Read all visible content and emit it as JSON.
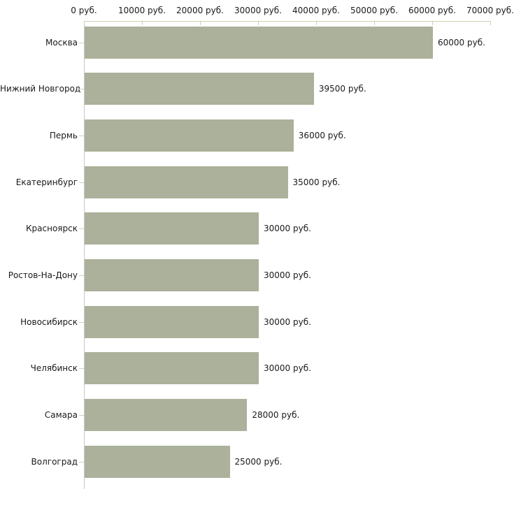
{
  "chart_data": {
    "type": "bar",
    "orientation": "horizontal",
    "title": "",
    "categories": [
      "Москва",
      "Нижний Новгород",
      "Пермь",
      "Екатеринбург",
      "Красноярск",
      "Ростов-На-Дону",
      "Новосибирск",
      "Челябинск",
      "Самара",
      "Волгоград"
    ],
    "values": [
      60000,
      39500,
      36000,
      35000,
      30000,
      30000,
      30000,
      30000,
      28000,
      25000
    ],
    "value_labels": [
      "60000 руб.",
      "39500 руб.",
      "36000 руб.",
      "35000 руб.",
      "30000 руб.",
      "30000 руб.",
      "30000 руб.",
      "30000 руб.",
      "28000 руб.",
      "25000 руб."
    ],
    "x_tick_labels": [
      "0 руб.",
      "10000 руб.",
      "20000 руб.",
      "30000 руб.",
      "40000 руб.",
      "50000 руб.",
      "60000 руб.",
      "70000 руб."
    ],
    "x_tick_values": [
      0,
      10000,
      20000,
      30000,
      40000,
      50000,
      60000,
      70000
    ],
    "xlim": [
      0,
      70000
    ],
    "unit": "руб.",
    "xlabel": "",
    "ylabel": "",
    "legend": null,
    "grid": false,
    "colors": {
      "bar_fill": "#abb19a",
      "x_axis_line": "#cfceb2",
      "y_axis_line": "#c8c8c8",
      "category_tick": "#d2d0b8",
      "text": "#1a1a1a",
      "background": "#ffffff"
    }
  }
}
